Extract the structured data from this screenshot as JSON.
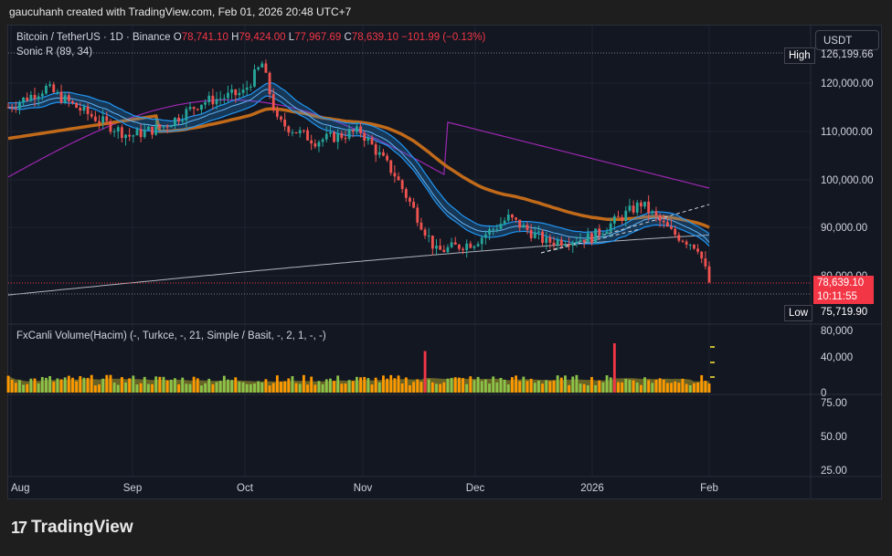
{
  "credit": "gaucuhanh created with TradingView.com, Feb 01, 2026 20:48 UTC+7",
  "legend": {
    "symbol": "Bitcoin / TetherUS · 1D · Binance",
    "o_label": "O",
    "o": "78,741.10",
    "h_label": "H",
    "h": "79,424.00",
    "l_label": "L",
    "l": "77,967.69",
    "c_label": "C",
    "c": "78,639.10",
    "change": "−101.99 (−0.13%)"
  },
  "indicator_label": "Sonic R (89, 34)",
  "volume_label": "FxCanli Volume(Hacim) (-, Turkce, -, 21, Simple / Basit, -, 2, 1, -, -)",
  "currency_button": "USDT",
  "price_axis": [
    "120,000.00",
    "110,000.00",
    "100,000.00",
    "90,000.00",
    "80,000.00"
  ],
  "volume_axis": [
    "80,000",
    "40,000",
    "0"
  ],
  "osc_axis": [
    "75.00",
    "50.00",
    "25.00"
  ],
  "x_axis": [
    "Aug",
    "Sep",
    "Oct",
    "Nov",
    "Dec",
    "2026",
    "Feb"
  ],
  "high_tag": {
    "label": "High",
    "value": "126,199.66"
  },
  "low_tag": {
    "label": "Low",
    "value": "75,719.90"
  },
  "last_price": {
    "value": "78,639.10",
    "countdown": "10:11:55"
  },
  "brand": "TradingView",
  "colors": {
    "up": "#ef5350",
    "down": "#26a69a",
    "ema_band": "#2196f3",
    "ema_slow": "#c06a1a",
    "ma_purple": "#9c27b0",
    "ma_white": "#b2b5be"
  },
  "chart_data": {
    "type": "candlestick",
    "ylim": [
      75000,
      128000
    ],
    "x": [
      "2025-07-31",
      "2025-08-10",
      "2025-08-20",
      "2025-09-01",
      "2025-09-10",
      "2025-09-20",
      "2025-10-01",
      "2025-10-06",
      "2025-10-10",
      "2025-10-20",
      "2025-11-01",
      "2025-11-10",
      "2025-11-21",
      "2025-12-01",
      "2025-12-10",
      "2025-12-20",
      "2026-01-01",
      "2026-01-14",
      "2026-01-22",
      "2026-01-29",
      "2026-02-01"
    ],
    "close": [
      115000,
      119000,
      114000,
      109000,
      111000,
      116000,
      118000,
      124000,
      112000,
      108000,
      110000,
      101000,
      85000,
      87000,
      92000,
      87000,
      88000,
      95000,
      89000,
      86000,
      78639
    ]
  }
}
